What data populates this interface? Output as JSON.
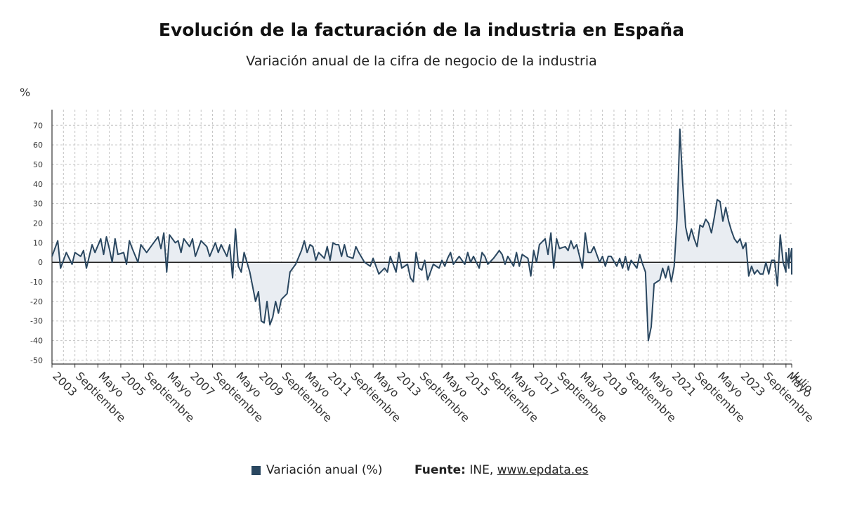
{
  "chart_data": {
    "type": "area",
    "title": "Evolución de la facturación de la industria en España",
    "subtitle": "Variación anual de la cifra de negocio de la industria",
    "ylabel": "%",
    "ylim": [
      -52,
      78
    ],
    "yticks": [
      70,
      60,
      50,
      40,
      30,
      20,
      10,
      0,
      -10,
      -20,
      -30,
      -40,
      -50
    ],
    "grid": true,
    "x_start": "2003-01",
    "x_end": "2024-07",
    "xtick_labels": [
      {
        "x": "2003-01",
        "label": "2003"
      },
      {
        "x": "2003-09",
        "label": "Septiembre"
      },
      {
        "x": "2004-05",
        "label": "Mayo"
      },
      {
        "x": "2005-01",
        "label": "2005"
      },
      {
        "x": "2005-09",
        "label": "Septiembre"
      },
      {
        "x": "2006-05",
        "label": "Mayo"
      },
      {
        "x": "2007-01",
        "label": "2007"
      },
      {
        "x": "2007-09",
        "label": "Septiembre"
      },
      {
        "x": "2008-05",
        "label": "Mayo"
      },
      {
        "x": "2009-01",
        "label": "2009"
      },
      {
        "x": "2009-09",
        "label": "Septiembre"
      },
      {
        "x": "2010-05",
        "label": "Mayo"
      },
      {
        "x": "2011-01",
        "label": "2011"
      },
      {
        "x": "2011-09",
        "label": "Septiembre"
      },
      {
        "x": "2012-05",
        "label": "Mayo"
      },
      {
        "x": "2013-01",
        "label": "2013"
      },
      {
        "x": "2013-09",
        "label": "Septiembre"
      },
      {
        "x": "2014-05",
        "label": "Mayo"
      },
      {
        "x": "2015-01",
        "label": "2015"
      },
      {
        "x": "2015-09",
        "label": "Septiembre"
      },
      {
        "x": "2016-05",
        "label": "Mayo"
      },
      {
        "x": "2017-01",
        "label": "2017"
      },
      {
        "x": "2017-09",
        "label": "Septiembre"
      },
      {
        "x": "2018-05",
        "label": "Mayo"
      },
      {
        "x": "2019-01",
        "label": "2019"
      },
      {
        "x": "2019-09",
        "label": "Septiembre"
      },
      {
        "x": "2020-05",
        "label": "Mayo"
      },
      {
        "x": "2021-01",
        "label": "2021"
      },
      {
        "x": "2021-09",
        "label": "Septiembre"
      },
      {
        "x": "2022-05",
        "label": "Mayo"
      },
      {
        "x": "2023-01",
        "label": "2023"
      },
      {
        "x": "2023-09",
        "label": "Septiembre"
      },
      {
        "x": "2024-05",
        "label": "Mayo"
      },
      {
        "x": "2024-07",
        "label": "Julio"
      }
    ],
    "series": [
      {
        "name": "Variación anual (%)",
        "color": "#2a4760",
        "fill": "#e9edf2",
        "points": [
          [
            "2003-01",
            3
          ],
          [
            "2003-03",
            11
          ],
          [
            "2003-04",
            -3
          ],
          [
            "2003-06",
            5
          ],
          [
            "2003-08",
            -1
          ],
          [
            "2003-09",
            5
          ],
          [
            "2003-11",
            3
          ],
          [
            "2003-12",
            6
          ],
          [
            "2004-01",
            -3
          ],
          [
            "2004-03",
            9
          ],
          [
            "2004-04",
            5
          ],
          [
            "2004-06",
            12
          ],
          [
            "2004-07",
            4
          ],
          [
            "2004-08",
            13
          ],
          [
            "2004-09",
            7
          ],
          [
            "2004-10",
            0
          ],
          [
            "2004-11",
            12
          ],
          [
            "2004-12",
            4
          ],
          [
            "2005-02",
            5
          ],
          [
            "2005-03",
            -1
          ],
          [
            "2005-04",
            11
          ],
          [
            "2005-05",
            7
          ],
          [
            "2005-07",
            0
          ],
          [
            "2005-08",
            9
          ],
          [
            "2005-10",
            5
          ],
          [
            "2005-12",
            9
          ],
          [
            "2006-02",
            13
          ],
          [
            "2006-03",
            7
          ],
          [
            "2006-04",
            15
          ],
          [
            "2006-05",
            -5
          ],
          [
            "2006-06",
            14
          ],
          [
            "2006-08",
            10
          ],
          [
            "2006-09",
            11
          ],
          [
            "2006-10",
            5
          ],
          [
            "2006-11",
            12
          ],
          [
            "2007-01",
            8
          ],
          [
            "2007-02",
            12
          ],
          [
            "2007-03",
            3
          ],
          [
            "2007-05",
            11
          ],
          [
            "2007-07",
            8
          ],
          [
            "2007-08",
            3
          ],
          [
            "2007-10",
            10
          ],
          [
            "2007-11",
            5
          ],
          [
            "2007-12",
            9
          ],
          [
            "2008-02",
            3
          ],
          [
            "2008-03",
            9
          ],
          [
            "2008-04",
            -8
          ],
          [
            "2008-05",
            17
          ],
          [
            "2008-06",
            -2
          ],
          [
            "2008-07",
            -5
          ],
          [
            "2008-08",
            5
          ],
          [
            "2008-10",
            -5
          ],
          [
            "2008-12",
            -20
          ],
          [
            "2009-01",
            -15
          ],
          [
            "2009-02",
            -30
          ],
          [
            "2009-03",
            -31
          ],
          [
            "2009-04",
            -20
          ],
          [
            "2009-05",
            -32
          ],
          [
            "2009-06",
            -28
          ],
          [
            "2009-07",
            -20
          ],
          [
            "2009-08",
            -26
          ],
          [
            "2009-09",
            -19
          ],
          [
            "2009-11",
            -16
          ],
          [
            "2009-12",
            -5
          ],
          [
            "2010-02",
            -1
          ],
          [
            "2010-04",
            6
          ],
          [
            "2010-05",
            11
          ],
          [
            "2010-06",
            5
          ],
          [
            "2010-07",
            9
          ],
          [
            "2010-08",
            8
          ],
          [
            "2010-09",
            1
          ],
          [
            "2010-10",
            5
          ],
          [
            "2010-12",
            2
          ],
          [
            "2011-01",
            8
          ],
          [
            "2011-02",
            1
          ],
          [
            "2011-03",
            10
          ],
          [
            "2011-04",
            9
          ],
          [
            "2011-05",
            9
          ],
          [
            "2011-06",
            3
          ],
          [
            "2011-07",
            9
          ],
          [
            "2011-08",
            3
          ],
          [
            "2011-10",
            2
          ],
          [
            "2011-11",
            8
          ],
          [
            "2011-12",
            5
          ],
          [
            "2012-02",
            0
          ],
          [
            "2012-04",
            -2
          ],
          [
            "2012-05",
            2
          ],
          [
            "2012-07",
            -6
          ],
          [
            "2012-09",
            -3
          ],
          [
            "2012-10",
            -5
          ],
          [
            "2012-11",
            3
          ],
          [
            "2013-01",
            -5
          ],
          [
            "2013-02",
            5
          ],
          [
            "2013-03",
            -3
          ],
          [
            "2013-05",
            -1
          ],
          [
            "2013-06",
            -8
          ],
          [
            "2013-07",
            -10
          ],
          [
            "2013-08",
            5
          ],
          [
            "2013-09",
            -3
          ],
          [
            "2013-10",
            -4
          ],
          [
            "2013-11",
            1
          ],
          [
            "2013-12",
            -9
          ],
          [
            "2014-02",
            -1
          ],
          [
            "2014-04",
            -3
          ],
          [
            "2014-05",
            1
          ],
          [
            "2014-06",
            -2
          ],
          [
            "2014-07",
            2
          ],
          [
            "2014-08",
            5
          ],
          [
            "2014-09",
            -1
          ],
          [
            "2014-11",
            3
          ],
          [
            "2015-01",
            -1
          ],
          [
            "2015-02",
            5
          ],
          [
            "2015-03",
            0
          ],
          [
            "2015-04",
            3
          ],
          [
            "2015-06",
            -3
          ],
          [
            "2015-07",
            5
          ],
          [
            "2015-08",
            3
          ],
          [
            "2015-09",
            -1
          ],
          [
            "2015-11",
            2
          ],
          [
            "2016-01",
            6
          ],
          [
            "2016-02",
            4
          ],
          [
            "2016-03",
            -1
          ],
          [
            "2016-04",
            3
          ],
          [
            "2016-06",
            -2
          ],
          [
            "2016-07",
            5
          ],
          [
            "2016-08",
            -2
          ],
          [
            "2016-09",
            4
          ],
          [
            "2016-11",
            2
          ],
          [
            "2016-12",
            -7
          ],
          [
            "2017-01",
            6
          ],
          [
            "2017-02",
            0
          ],
          [
            "2017-03",
            9
          ],
          [
            "2017-05",
            12
          ],
          [
            "2017-06",
            4
          ],
          [
            "2017-07",
            15
          ],
          [
            "2017-08",
            -3
          ],
          [
            "2017-09",
            12
          ],
          [
            "2017-10",
            7
          ],
          [
            "2017-12",
            8
          ],
          [
            "2018-01",
            6
          ],
          [
            "2018-02",
            11
          ],
          [
            "2018-03",
            7
          ],
          [
            "2018-04",
            9
          ],
          [
            "2018-05",
            3
          ],
          [
            "2018-06",
            -3
          ],
          [
            "2018-07",
            15
          ],
          [
            "2018-08",
            5
          ],
          [
            "2018-09",
            5
          ],
          [
            "2018-10",
            8
          ],
          [
            "2018-12",
            0
          ],
          [
            "2019-01",
            3
          ],
          [
            "2019-02",
            -2
          ],
          [
            "2019-03",
            3
          ],
          [
            "2019-04",
            3
          ],
          [
            "2019-06",
            -2
          ],
          [
            "2019-07",
            2
          ],
          [
            "2019-08",
            -3
          ],
          [
            "2019-09",
            3
          ],
          [
            "2019-10",
            -4
          ],
          [
            "2019-11",
            1
          ],
          [
            "2020-01",
            -3
          ],
          [
            "2020-02",
            4
          ],
          [
            "2020-03",
            -1
          ],
          [
            "2020-04",
            -5
          ],
          [
            "2020-05",
            -40
          ],
          [
            "2020-06",
            -33
          ],
          [
            "2020-07",
            -11
          ],
          [
            "2020-08",
            -10
          ],
          [
            "2020-09",
            -9
          ],
          [
            "2020-10",
            -3
          ],
          [
            "2020-11",
            -8
          ],
          [
            "2020-12",
            -2
          ],
          [
            "2021-01",
            -10
          ],
          [
            "2021-02",
            -2
          ],
          [
            "2021-03",
            22
          ],
          [
            "2021-04",
            68
          ],
          [
            "2021-05",
            40
          ],
          [
            "2021-06",
            18
          ],
          [
            "2021-07",
            11
          ],
          [
            "2021-08",
            17
          ],
          [
            "2021-09",
            12
          ],
          [
            "2021-10",
            8
          ],
          [
            "2021-11",
            19
          ],
          [
            "2021-12",
            18
          ],
          [
            "2022-01",
            22
          ],
          [
            "2022-02",
            20
          ],
          [
            "2022-03",
            15
          ],
          [
            "2022-04",
            23
          ],
          [
            "2022-05",
            32
          ],
          [
            "2022-06",
            31
          ],
          [
            "2022-07",
            21
          ],
          [
            "2022-08",
            28
          ],
          [
            "2022-09",
            21
          ],
          [
            "2022-10",
            16
          ],
          [
            "2022-11",
            12
          ],
          [
            "2022-12",
            10
          ],
          [
            "2023-01",
            12
          ],
          [
            "2023-02",
            7
          ],
          [
            "2023-03",
            10
          ],
          [
            "2023-04",
            -7
          ],
          [
            "2023-05",
            -2
          ],
          [
            "2023-06",
            -6
          ],
          [
            "2023-07",
            -4
          ],
          [
            "2023-08",
            -6
          ],
          [
            "2023-09",
            -6
          ],
          [
            "2023-10",
            0
          ],
          [
            "2023-11",
            -6
          ],
          [
            "2023-12",
            1
          ],
          [
            "2024-01",
            1
          ],
          [
            "2024-02",
            -12
          ],
          [
            "2024-03",
            14
          ],
          [
            "2024-04",
            0
          ],
          [
            "2024-05",
            -5
          ],
          [
            "2024-05",
            5
          ],
          [
            "2024-06",
            -3
          ],
          [
            "2024-06",
            5
          ],
          [
            "2024-06",
            -1
          ],
          [
            "2024-06",
            7
          ],
          [
            "2024-06",
            -1
          ],
          [
            "2024-07",
            7
          ],
          [
            "2024-07",
            -6
          ],
          [
            "2024-07",
            4
          ],
          [
            "2024-07",
            2
          ]
        ]
      }
    ]
  },
  "legend": {
    "label": "Variación anual (%)"
  },
  "source": {
    "label": "Fuente:",
    "text": " INE, ",
    "link": "www.epdata.es"
  }
}
